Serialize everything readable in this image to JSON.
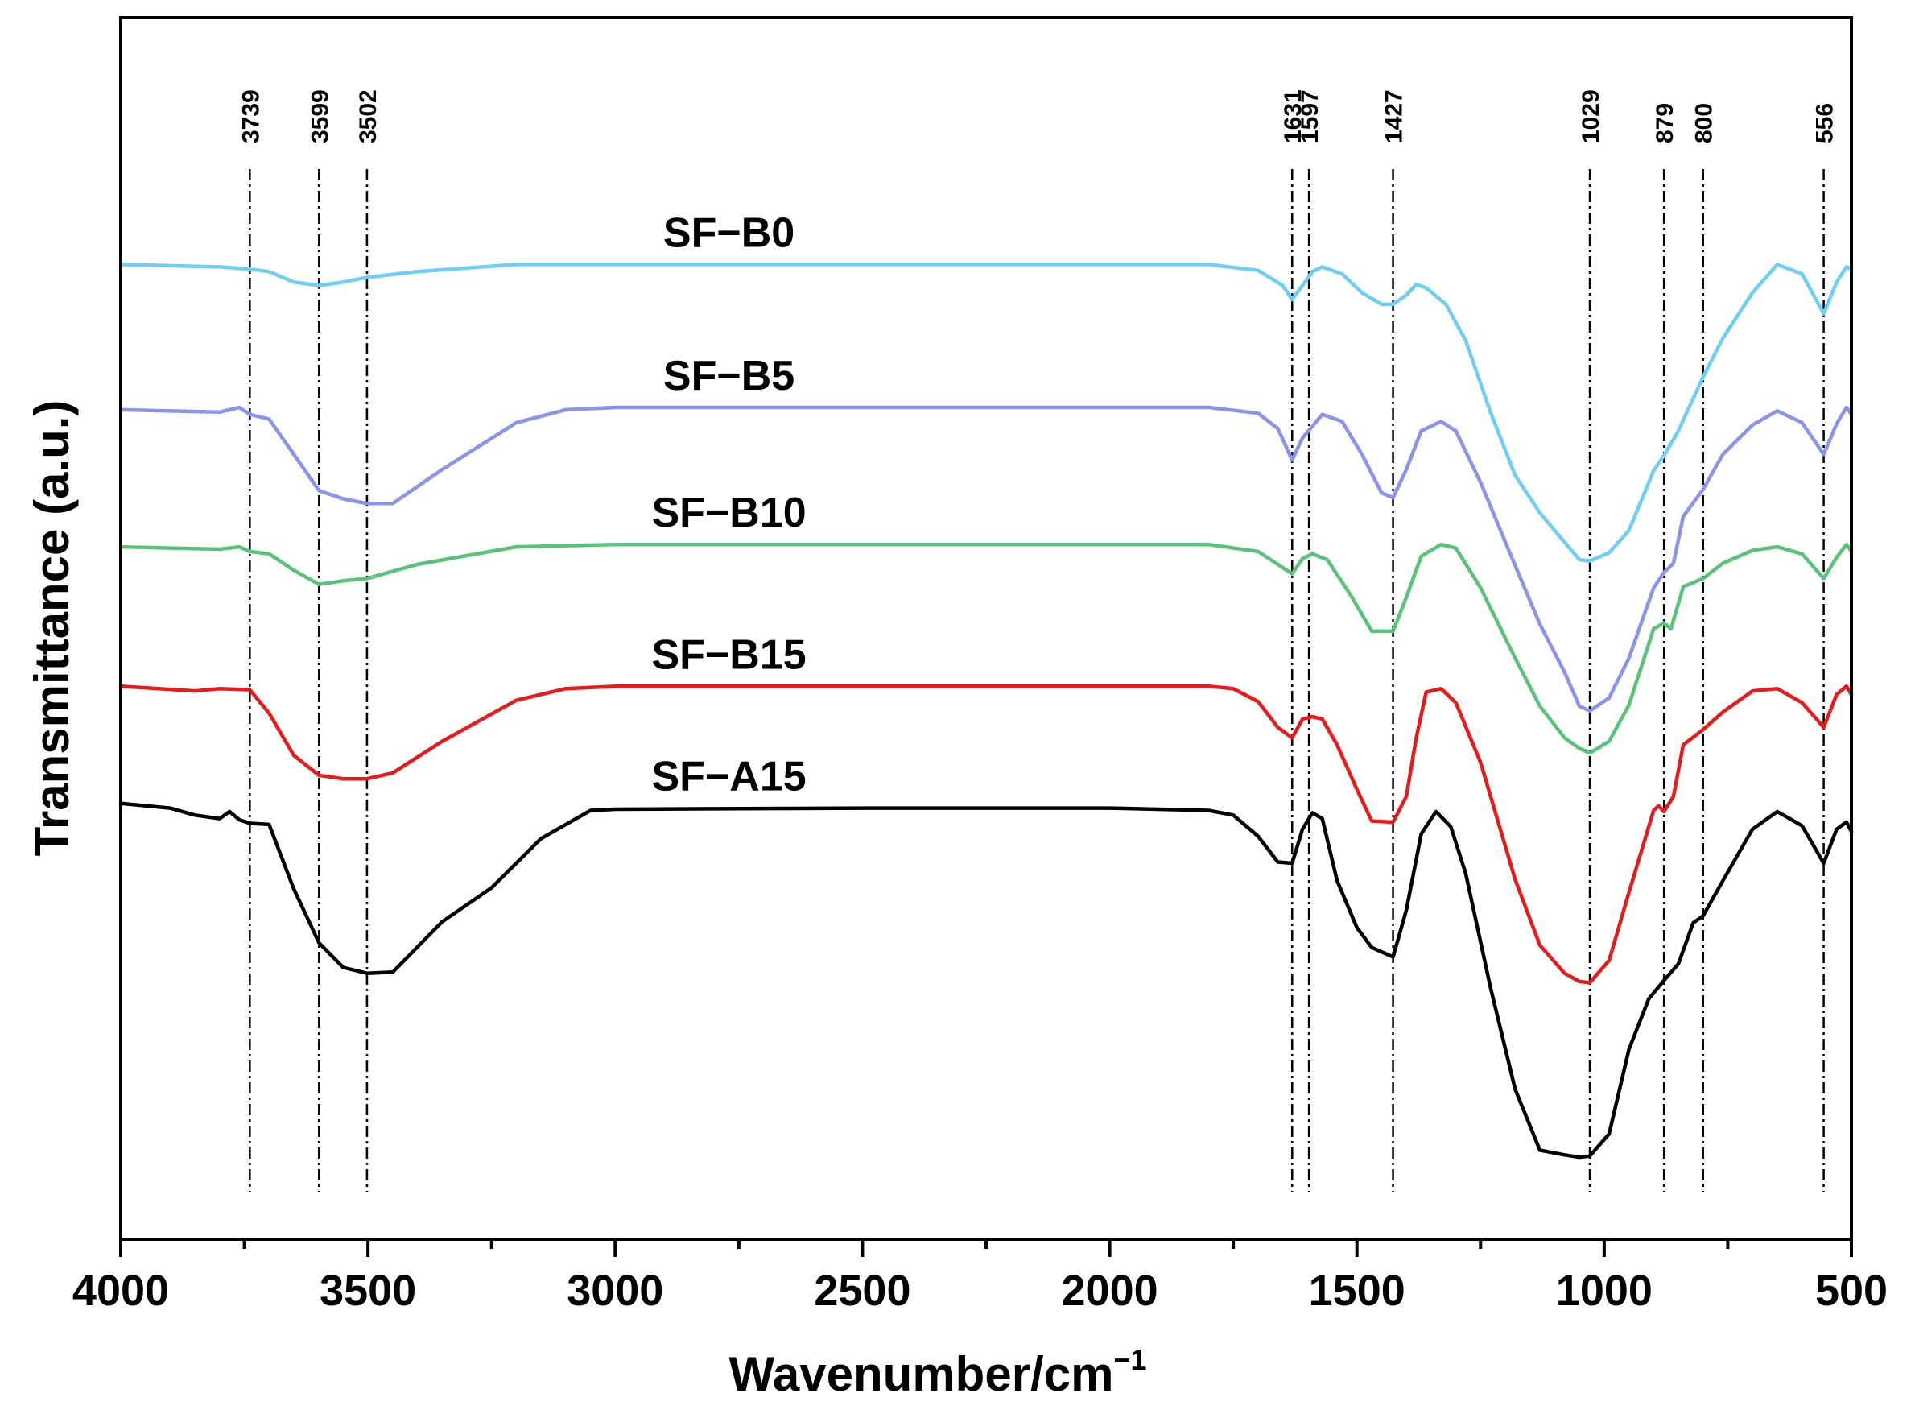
{
  "chart_data": {
    "type": "line",
    "title": "",
    "xlabel": "Wavenumber/cm",
    "xlabel_superscript": "−1",
    "ylabel": "Transmittance (a.u.)",
    "xlim": [
      4000,
      500
    ],
    "ylim": [
      0,
      100
    ],
    "x_ticks": [
      4000,
      3500,
      3000,
      2500,
      2000,
      1500,
      1000,
      500
    ],
    "x_tick_labels": [
      "4000",
      "3500",
      "3000",
      "2500",
      "2000",
      "1500",
      "1000",
      "500"
    ],
    "reference_lines": [
      {
        "x": 3739,
        "label": "3739"
      },
      {
        "x": 3599,
        "label": "3599"
      },
      {
        "x": 3502,
        "label": "3502"
      },
      {
        "x": 1631,
        "label": "1631"
      },
      {
        "x": 1597,
        "label": "1597"
      },
      {
        "x": 1427,
        "label": "1427"
      },
      {
        "x": 1029,
        "label": "1029"
      },
      {
        "x": 879,
        "label": "879"
      },
      {
        "x": 800,
        "label": "800"
      },
      {
        "x": 556,
        "label": "556"
      }
    ],
    "series": [
      {
        "name": "SF−B0",
        "color": "#6ecff6",
        "points": [
          [
            4000,
            81.0
          ],
          [
            3800,
            80.8
          ],
          [
            3739,
            80.6
          ],
          [
            3700,
            80.4
          ],
          [
            3650,
            79.5
          ],
          [
            3599,
            79.2
          ],
          [
            3550,
            79.5
          ],
          [
            3502,
            79.9
          ],
          [
            3400,
            80.4
          ],
          [
            3200,
            81.0
          ],
          [
            3000,
            81.0
          ],
          [
            2500,
            81.0
          ],
          [
            2000,
            81.0
          ],
          [
            1800,
            81.0
          ],
          [
            1700,
            80.5
          ],
          [
            1650,
            79.2
          ],
          [
            1631,
            78.0
          ],
          [
            1610,
            79.2
          ],
          [
            1590,
            80.4
          ],
          [
            1570,
            80.8
          ],
          [
            1530,
            80.2
          ],
          [
            1490,
            78.6
          ],
          [
            1450,
            77.6
          ],
          [
            1427,
            77.6
          ],
          [
            1400,
            78.4
          ],
          [
            1380,
            79.3
          ],
          [
            1360,
            79.0
          ],
          [
            1320,
            77.6
          ],
          [
            1280,
            74.5
          ],
          [
            1230,
            68.4
          ],
          [
            1180,
            63.0
          ],
          [
            1130,
            59.8
          ],
          [
            1080,
            57.3
          ],
          [
            1050,
            55.8
          ],
          [
            1029,
            55.7
          ],
          [
            990,
            56.4
          ],
          [
            950,
            58.3
          ],
          [
            900,
            63.4
          ],
          [
            879,
            64.7
          ],
          [
            850,
            66.8
          ],
          [
            800,
            71.4
          ],
          [
            760,
            74.7
          ],
          [
            700,
            78.6
          ],
          [
            650,
            81.0
          ],
          [
            600,
            80.2
          ],
          [
            556,
            76.8
          ],
          [
            530,
            79.5
          ],
          [
            510,
            80.8
          ],
          [
            500,
            80.6
          ]
        ]
      },
      {
        "name": "SF−B5",
        "color": "#8a94ea",
        "points": [
          [
            4000,
            68.6
          ],
          [
            3800,
            68.4
          ],
          [
            3760,
            68.8
          ],
          [
            3739,
            68.2
          ],
          [
            3700,
            67.8
          ],
          [
            3650,
            64.8
          ],
          [
            3599,
            61.7
          ],
          [
            3550,
            61.0
          ],
          [
            3502,
            60.6
          ],
          [
            3450,
            60.6
          ],
          [
            3350,
            63.5
          ],
          [
            3200,
            67.5
          ],
          [
            3100,
            68.6
          ],
          [
            3000,
            68.8
          ],
          [
            2500,
            68.8
          ],
          [
            2000,
            68.8
          ],
          [
            1800,
            68.8
          ],
          [
            1700,
            68.3
          ],
          [
            1660,
            67.0
          ],
          [
            1631,
            64.3
          ],
          [
            1610,
            66.2
          ],
          [
            1590,
            67.2
          ],
          [
            1570,
            68.2
          ],
          [
            1530,
            67.6
          ],
          [
            1490,
            64.8
          ],
          [
            1450,
            61.5
          ],
          [
            1427,
            61.1
          ],
          [
            1400,
            63.5
          ],
          [
            1370,
            66.8
          ],
          [
            1330,
            67.6
          ],
          [
            1300,
            66.8
          ],
          [
            1250,
            62.4
          ],
          [
            1180,
            55.3
          ],
          [
            1130,
            50.3
          ],
          [
            1080,
            46.2
          ],
          [
            1050,
            43.3
          ],
          [
            1029,
            42.9
          ],
          [
            990,
            44.0
          ],
          [
            950,
            47.4
          ],
          [
            900,
            53.4
          ],
          [
            879,
            54.7
          ],
          [
            860,
            55.5
          ],
          [
            840,
            59.5
          ],
          [
            800,
            61.8
          ],
          [
            760,
            64.8
          ],
          [
            700,
            67.3
          ],
          [
            650,
            68.5
          ],
          [
            600,
            67.5
          ],
          [
            556,
            64.8
          ],
          [
            530,
            67.4
          ],
          [
            510,
            68.8
          ],
          [
            500,
            68.2
          ]
        ]
      },
      {
        "name": "SF−B10",
        "color": "#59c37b",
        "points": [
          [
            4000,
            56.9
          ],
          [
            3800,
            56.7
          ],
          [
            3760,
            56.9
          ],
          [
            3739,
            56.5
          ],
          [
            3700,
            56.3
          ],
          [
            3650,
            54.9
          ],
          [
            3599,
            53.7
          ],
          [
            3550,
            54.0
          ],
          [
            3502,
            54.2
          ],
          [
            3400,
            55.4
          ],
          [
            3200,
            56.9
          ],
          [
            3000,
            57.1
          ],
          [
            2500,
            57.1
          ],
          [
            2000,
            57.1
          ],
          [
            1800,
            57.1
          ],
          [
            1700,
            56.5
          ],
          [
            1660,
            55.4
          ],
          [
            1631,
            54.6
          ],
          [
            1610,
            55.9
          ],
          [
            1590,
            56.3
          ],
          [
            1560,
            55.8
          ],
          [
            1510,
            52.6
          ],
          [
            1470,
            49.7
          ],
          [
            1427,
            49.7
          ],
          [
            1400,
            52.6
          ],
          [
            1370,
            56.1
          ],
          [
            1330,
            57.1
          ],
          [
            1300,
            56.8
          ],
          [
            1250,
            53.4
          ],
          [
            1180,
            47.4
          ],
          [
            1130,
            43.3
          ],
          [
            1080,
            40.6
          ],
          [
            1050,
            39.7
          ],
          [
            1029,
            39.3
          ],
          [
            990,
            40.3
          ],
          [
            950,
            43.4
          ],
          [
            900,
            49.9
          ],
          [
            879,
            50.4
          ],
          [
            865,
            49.9
          ],
          [
            840,
            53.5
          ],
          [
            800,
            54.2
          ],
          [
            760,
            55.5
          ],
          [
            700,
            56.6
          ],
          [
            650,
            56.9
          ],
          [
            600,
            56.3
          ],
          [
            556,
            54.2
          ],
          [
            530,
            56.0
          ],
          [
            510,
            57.1
          ],
          [
            500,
            56.5
          ]
        ]
      },
      {
        "name": "SF−B15",
        "color": "#ea1a1a",
        "points": [
          [
            4000,
            45.0
          ],
          [
            3850,
            44.6
          ],
          [
            3800,
            44.8
          ],
          [
            3739,
            44.7
          ],
          [
            3700,
            42.7
          ],
          [
            3650,
            39.1
          ],
          [
            3599,
            37.4
          ],
          [
            3550,
            37.1
          ],
          [
            3502,
            37.1
          ],
          [
            3450,
            37.6
          ],
          [
            3350,
            40.3
          ],
          [
            3200,
            43.8
          ],
          [
            3100,
            44.8
          ],
          [
            3000,
            45.0
          ],
          [
            2500,
            45.0
          ],
          [
            2000,
            45.0
          ],
          [
            1800,
            45.0
          ],
          [
            1750,
            44.8
          ],
          [
            1700,
            43.7
          ],
          [
            1660,
            41.5
          ],
          [
            1631,
            40.6
          ],
          [
            1610,
            42.2
          ],
          [
            1590,
            42.4
          ],
          [
            1570,
            42.2
          ],
          [
            1540,
            40.0
          ],
          [
            1500,
            36.2
          ],
          [
            1470,
            33.5
          ],
          [
            1427,
            33.4
          ],
          [
            1400,
            35.6
          ],
          [
            1380,
            40.6
          ],
          [
            1360,
            44.5
          ],
          [
            1330,
            44.8
          ],
          [
            1300,
            43.6
          ],
          [
            1250,
            38.5
          ],
          [
            1180,
            28.5
          ],
          [
            1130,
            22.9
          ],
          [
            1080,
            20.5
          ],
          [
            1050,
            19.8
          ],
          [
            1029,
            19.7
          ],
          [
            990,
            21.6
          ],
          [
            950,
            27.4
          ],
          [
            900,
            34.4
          ],
          [
            890,
            34.8
          ],
          [
            879,
            34.3
          ],
          [
            860,
            35.6
          ],
          [
            840,
            40.0
          ],
          [
            800,
            41.3
          ],
          [
            760,
            42.8
          ],
          [
            700,
            44.6
          ],
          [
            650,
            44.8
          ],
          [
            600,
            43.6
          ],
          [
            556,
            41.5
          ],
          [
            530,
            44.3
          ],
          [
            510,
            45.0
          ],
          [
            500,
            44.3
          ]
        ]
      },
      {
        "name": "SF−A15",
        "color": "#000000",
        "points": [
          [
            4000,
            35.0
          ],
          [
            3900,
            34.6
          ],
          [
            3850,
            34.0
          ],
          [
            3800,
            33.7
          ],
          [
            3780,
            34.3
          ],
          [
            3760,
            33.6
          ],
          [
            3739,
            33.3
          ],
          [
            3700,
            33.2
          ],
          [
            3650,
            27.7
          ],
          [
            3599,
            23.1
          ],
          [
            3550,
            21.0
          ],
          [
            3502,
            20.5
          ],
          [
            3450,
            20.6
          ],
          [
            3350,
            24.9
          ],
          [
            3250,
            27.8
          ],
          [
            3150,
            32.0
          ],
          [
            3050,
            34.4
          ],
          [
            3000,
            34.5
          ],
          [
            2500,
            34.6
          ],
          [
            2000,
            34.6
          ],
          [
            1800,
            34.4
          ],
          [
            1750,
            34.0
          ],
          [
            1700,
            32.2
          ],
          [
            1660,
            30.0
          ],
          [
            1631,
            29.9
          ],
          [
            1610,
            32.8
          ],
          [
            1590,
            34.2
          ],
          [
            1570,
            33.7
          ],
          [
            1540,
            28.4
          ],
          [
            1500,
            24.4
          ],
          [
            1470,
            22.7
          ],
          [
            1427,
            21.9
          ],
          [
            1400,
            25.9
          ],
          [
            1370,
            32.4
          ],
          [
            1340,
            34.3
          ],
          [
            1310,
            33.0
          ],
          [
            1280,
            29.0
          ],
          [
            1230,
            19.3
          ],
          [
            1180,
            10.6
          ],
          [
            1130,
            5.4
          ],
          [
            1080,
            5.0
          ],
          [
            1050,
            4.8
          ],
          [
            1029,
            4.9
          ],
          [
            990,
            6.8
          ],
          [
            950,
            14.0
          ],
          [
            910,
            18.3
          ],
          [
            879,
            19.9
          ],
          [
            850,
            21.3
          ],
          [
            820,
            24.8
          ],
          [
            800,
            25.4
          ],
          [
            760,
            28.4
          ],
          [
            700,
            32.8
          ],
          [
            650,
            34.3
          ],
          [
            600,
            33.1
          ],
          [
            556,
            29.9
          ],
          [
            530,
            32.8
          ],
          [
            510,
            33.4
          ],
          [
            500,
            32.6
          ]
        ]
      }
    ],
    "series_labels": [
      {
        "text": "SF−B0",
        "series": "SF−B0"
      },
      {
        "text": "SF−B5",
        "series": "SF−B5"
      },
      {
        "text": "SF−B10",
        "series": "SF−B10"
      },
      {
        "text": "SF−B15",
        "series": "SF−B15"
      },
      {
        "text": "SF−A15",
        "series": "SF−A15"
      }
    ]
  }
}
